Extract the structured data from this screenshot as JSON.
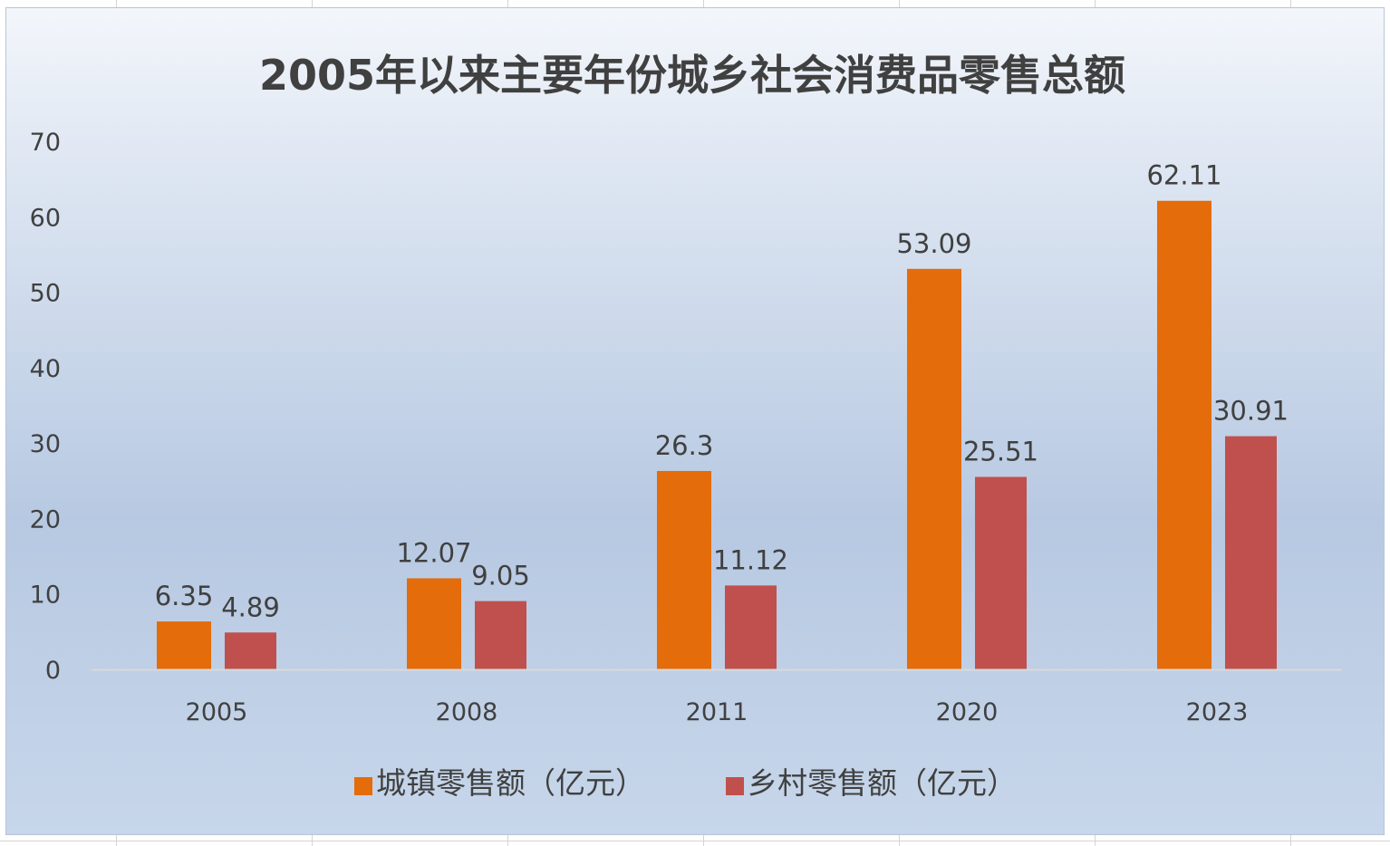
{
  "chart_data": {
    "type": "bar",
    "title": "2005年以来主要年份城乡社会消费品零售总额",
    "xlabel": "",
    "ylabel": "",
    "categories": [
      "2005",
      "2008",
      "2011",
      "2020",
      "2023"
    ],
    "series": [
      {
        "name": "城镇零售额（亿元）",
        "color": "#e46c0a",
        "values": [
          6.35,
          12.07,
          26.3,
          53.09,
          62.11
        ],
        "labels": [
          "6.35",
          "12.07",
          "26.3",
          "53.09",
          "62.11"
        ]
      },
      {
        "name": "乡村零售额（亿元）",
        "color": "#c0504d",
        "values": [
          4.89,
          9.05,
          11.12,
          25.51,
          30.91
        ],
        "labels": [
          "4.89",
          "9.05",
          "11.12",
          "25.51",
          "30.91"
        ]
      }
    ],
    "ylim": [
      0,
      70
    ],
    "yticks": [
      "0",
      "10",
      "20",
      "30",
      "40",
      "50",
      "60",
      "70"
    ],
    "grid": false,
    "legend_position": "bottom"
  }
}
